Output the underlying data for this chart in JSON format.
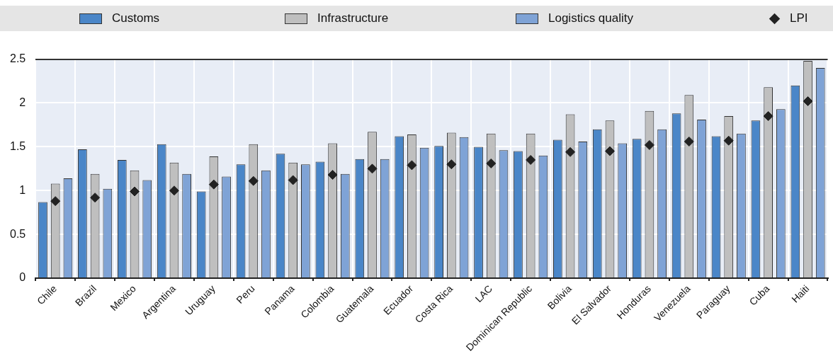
{
  "chart_data": {
    "type": "bar",
    "categories": [
      "Chile",
      "Brazil",
      "Mexico",
      "Argentina",
      "Uruguay",
      "Peru",
      "Panama",
      "Colombia",
      "Guatemala",
      "Ecuador",
      "Costa Rica",
      "LAC",
      "Dominican Republic",
      "Bolivia",
      "El Salvador",
      "Honduras",
      "Venezuela",
      "Paraguay",
      "Cuba",
      "Haiti"
    ],
    "series": [
      {
        "name": "Customs",
        "color": "#4a86c8",
        "values": [
          0.87,
          1.47,
          1.35,
          1.53,
          0.99,
          1.3,
          1.42,
          1.33,
          1.36,
          1.62,
          1.51,
          1.5,
          1.45,
          1.58,
          1.7,
          1.59,
          1.88,
          1.62,
          1.8,
          2.2
        ]
      },
      {
        "name": "Infrastructure",
        "color": "#bfbfbf",
        "values": [
          1.08,
          1.19,
          1.23,
          1.32,
          1.39,
          1.53,
          1.32,
          1.54,
          1.67,
          1.64,
          1.66,
          1.65,
          1.65,
          1.87,
          1.8,
          1.91,
          2.09,
          1.85,
          2.18,
          2.48
        ]
      },
      {
        "name": "Logistics quality",
        "color": "#7fa3d6",
        "values": [
          1.14,
          1.02,
          1.12,
          1.19,
          1.16,
          1.23,
          1.3,
          1.19,
          1.36,
          1.49,
          1.61,
          1.46,
          1.4,
          1.56,
          1.54,
          1.7,
          1.81,
          1.65,
          1.93,
          2.4
        ]
      },
      {
        "name": "LPI",
        "type": "scatter",
        "marker": "diamond",
        "color": "#222222",
        "values": [
          0.88,
          0.92,
          0.99,
          1.0,
          1.07,
          1.11,
          1.12,
          1.18,
          1.25,
          1.29,
          1.3,
          1.31,
          1.35,
          1.44,
          1.45,
          1.52,
          1.56,
          1.57,
          1.85,
          2.02
        ]
      }
    ],
    "ylim": [
      0,
      2.5
    ],
    "yticks": [
      0,
      0.5,
      1,
      1.5,
      2,
      2.5
    ],
    "grid": true,
    "legend": "top"
  }
}
